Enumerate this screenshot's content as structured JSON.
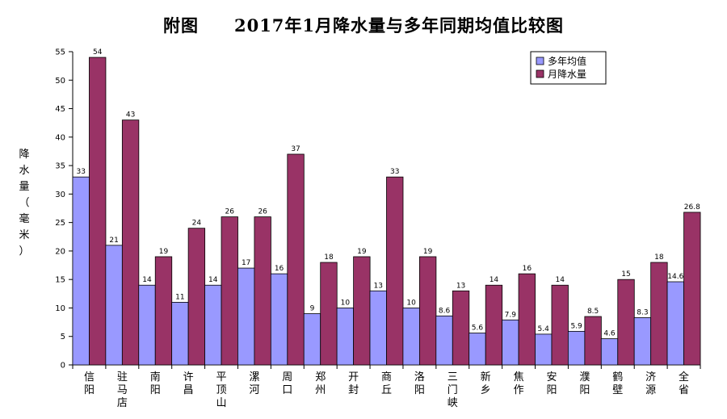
{
  "title": "附图　　2017年1月降水量与多年同期均值比较图",
  "chart_data": {
    "type": "bar",
    "title": "附图　　2017年1月降水量与多年同期均值比较图",
    "ylabel": "降水量（毫米）",
    "xlabel": "",
    "ylim": [
      0,
      55
    ],
    "yticks": [
      0,
      5,
      10,
      15,
      20,
      25,
      30,
      35,
      40,
      45,
      50,
      55
    ],
    "grid": false,
    "legend_position": "top-right",
    "categories": [
      "信阳",
      "驻马店",
      "南阳",
      "许昌",
      "平顶山",
      "漯河",
      "周口",
      "郑州",
      "开封",
      "商丘",
      "洛阳",
      "三门峡",
      "新乡",
      "焦作",
      "安阳",
      "濮阳",
      "鹤壁",
      "济源",
      "全省"
    ],
    "series": [
      {
        "name": "多年均值",
        "color": "#9999ff",
        "values": [
          33,
          21,
          14,
          11,
          14,
          17,
          16,
          9,
          10,
          13,
          10,
          8.6,
          5.6,
          7.9,
          5.4,
          5.9,
          4.6,
          8.3,
          14.6
        ],
        "labels": [
          "33",
          "21",
          "14",
          "11",
          "14",
          "17",
          "16",
          "9",
          "10",
          "13",
          "10",
          "8.6",
          "5.6",
          "7.9",
          "5.4",
          "5.9",
          "4.6",
          "8.3",
          "14.6"
        ]
      },
      {
        "name": "月降水量",
        "color": "#993366",
        "values": [
          54,
          43,
          19,
          24,
          26,
          26,
          37,
          18,
          19,
          33,
          19,
          13,
          14,
          16,
          14,
          8.5,
          15,
          18,
          26.8
        ],
        "labels": [
          "54",
          "43",
          "19",
          "24",
          "26",
          "26",
          "37",
          "18",
          "19",
          "33",
          "19",
          "13",
          "14",
          "16",
          "14",
          "8.5",
          "15",
          "18",
          "26.8"
        ]
      }
    ]
  }
}
